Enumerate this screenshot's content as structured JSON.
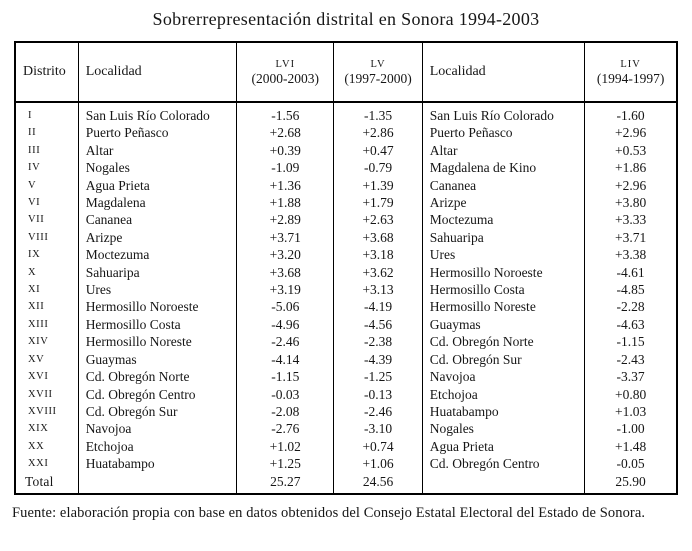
{
  "title": "Sobrerrepresentación distrital en Sonora 1994-2003",
  "source_note": "Fuente: elaboración propia con base en datos obtenidos del Consejo Estatal Electoral del Estado de Sonora.",
  "table": {
    "headers": {
      "distrito": "Distrito",
      "localidad_left": "Localidad",
      "lvi": {
        "abbr": "LVI",
        "period": "(2000-2003)"
      },
      "lv": {
        "abbr": "LV",
        "period": "(1997-2000)"
      },
      "localidad_right": "Localidad",
      "liv": {
        "abbr": "LIV",
        "period": "(1994-1997)"
      }
    },
    "rows": [
      {
        "distrito": "I",
        "loc_left": "San Luis Río Colorado",
        "lvi": "-1.56",
        "lv": "-1.35",
        "loc_right": "San Luis Río Colorado",
        "liv": "-1.60"
      },
      {
        "distrito": "II",
        "loc_left": "Puerto Peñasco",
        "lvi": "+2.68",
        "lv": "+2.86",
        "loc_right": "Puerto Peñasco",
        "liv": "+2.96"
      },
      {
        "distrito": "III",
        "loc_left": "Altar",
        "lvi": "+0.39",
        "lv": "+0.47",
        "loc_right": "Altar",
        "liv": "+0.53"
      },
      {
        "distrito": "IV",
        "loc_left": "Nogales",
        "lvi": "-1.09",
        "lv": "-0.79",
        "loc_right": "Magdalena de Kino",
        "liv": "+1.86"
      },
      {
        "distrito": "V",
        "loc_left": "Agua Prieta",
        "lvi": "+1.36",
        "lv": "+1.39",
        "loc_right": "Cananea",
        "liv": "+2.96"
      },
      {
        "distrito": "VI",
        "loc_left": "Magdalena",
        "lvi": "+1.88",
        "lv": "+1.79",
        "loc_right": "Arizpe",
        "liv": "+3.80"
      },
      {
        "distrito": "VII",
        "loc_left": "Cananea",
        "lvi": "+2.89",
        "lv": "+2.63",
        "loc_right": "Moctezuma",
        "liv": "+3.33"
      },
      {
        "distrito": "VIII",
        "loc_left": "Arizpe",
        "lvi": "+3.71",
        "lv": "+3.68",
        "loc_right": "Sahuaripa",
        "liv": "+3.71"
      },
      {
        "distrito": "IX",
        "loc_left": "Moctezuma",
        "lvi": "+3.20",
        "lv": "+3.18",
        "loc_right": "Ures",
        "liv": "+3.38"
      },
      {
        "distrito": "X",
        "loc_left": "Sahuaripa",
        "lvi": "+3.68",
        "lv": "+3.62",
        "loc_right": "Hermosillo Noroeste",
        "liv": "-4.61"
      },
      {
        "distrito": "XI",
        "loc_left": "Ures",
        "lvi": "+3.19",
        "lv": "+3.13",
        "loc_right": "Hermosillo Costa",
        "liv": "-4.85"
      },
      {
        "distrito": "XII",
        "loc_left": "Hermosillo Noroeste",
        "lvi": "-5.06",
        "lv": "-4.19",
        "loc_right": "Hermosillo Noreste",
        "liv": "-2.28"
      },
      {
        "distrito": "XIII",
        "loc_left": "Hermosillo Costa",
        "lvi": "-4.96",
        "lv": "-4.56",
        "loc_right": "Guaymas",
        "liv": "-4.63"
      },
      {
        "distrito": "XIV",
        "loc_left": "Hermosillo Noreste",
        "lvi": "-2.46",
        "lv": "-2.38",
        "loc_right": "Cd. Obregón Norte",
        "liv": "-1.15"
      },
      {
        "distrito": "XV",
        "loc_left": "Guaymas",
        "lvi": "-4.14",
        "lv": "-4.39",
        "loc_right": "Cd. Obregón Sur",
        "liv": "-2.43"
      },
      {
        "distrito": "XVI",
        "loc_left": "Cd. Obregón Norte",
        "lvi": "-1.15",
        "lv": "-1.25",
        "loc_right": "Navojoa",
        "liv": "-3.37"
      },
      {
        "distrito": "XVII",
        "loc_left": "Cd. Obregón Centro",
        "lvi": "-0.03",
        "lv": "-0.13",
        "loc_right": "Etchojoa",
        "liv": "+0.80"
      },
      {
        "distrito": "XVIII",
        "loc_left": "Cd. Obregón Sur",
        "lvi": "-2.08",
        "lv": "-2.46",
        "loc_right": "Huatabampo",
        "liv": "+1.03"
      },
      {
        "distrito": "XIX",
        "loc_left": "Navojoa",
        "lvi": "-2.76",
        "lv": "-3.10",
        "loc_right": "Nogales",
        "liv": "-1.00"
      },
      {
        "distrito": "XX",
        "loc_left": "Etchojoa",
        "lvi": "+1.02",
        "lv": "+0.74",
        "loc_right": "Agua Prieta",
        "liv": "+1.48"
      },
      {
        "distrito": "XXI",
        "loc_left": "Huatabampo",
        "lvi": "+1.25",
        "lv": "+1.06",
        "loc_right": "Cd. Obregón Centro",
        "liv": "-0.05"
      }
    ],
    "total": {
      "label": "Total",
      "lvi": "25.27",
      "lv": "24.56",
      "liv": "25.90"
    }
  }
}
